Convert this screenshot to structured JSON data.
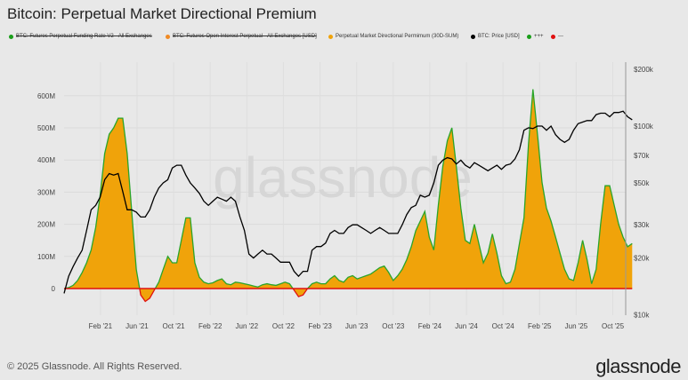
{
  "title": "Bitcoin: Perpetual Market Directional Premium",
  "legend": [
    {
      "label": "BTC: Futures Perpetual Funding Rate V2 - All Exchanges",
      "color": "#1a9e1a",
      "disabled": true
    },
    {
      "label": "BTC: Futures Open Interest Perpetual - All Exchanges [USD]",
      "color": "#f08a24",
      "disabled": true
    },
    {
      "label": "Perpetual Market Directional Permimum (30D-SUM)",
      "color": "#f0a30a",
      "disabled": false
    },
    {
      "label": "BTC: Price [USD]",
      "color": "#000000",
      "disabled": false
    },
    {
      "label": "+++",
      "color": "#1a9e1a",
      "disabled": false
    },
    {
      "label": "---",
      "color": "#e01010",
      "disabled": false
    }
  ],
  "watermark": "glassnode",
  "footer": "© 2025 Glassnode. All Rights Reserved.",
  "logo": "glassnode",
  "chart_data": {
    "type": "area",
    "title": "Bitcoin: Perpetual Market Directional Premium",
    "x_start": "2020-11-01",
    "step_days": 15,
    "x_tick_labels": [
      "Feb '21",
      "Jun '21",
      "Oct '21",
      "Feb '22",
      "Jun '22",
      "Oct '22",
      "Feb '23",
      "Jun '23",
      "Oct '23",
      "Feb '24",
      "Jun '24",
      "Oct '24",
      "Feb '25",
      "Jun '25",
      "Oct '25"
    ],
    "x_tick_month_offsets": [
      3,
      7,
      11,
      15,
      19,
      23,
      27,
      31,
      35,
      39,
      43,
      47,
      51,
      55,
      59
    ],
    "left_axis": {
      "ticks": [
        0,
        100,
        200,
        300,
        400,
        500,
        600
      ],
      "tick_labels": [
        "0",
        "100M",
        "200M",
        "300M",
        "400M",
        "500M",
        "600M"
      ],
      "ylim": [
        -120,
        700
      ],
      "unit": "M USD"
    },
    "right_axis": {
      "scale": "log",
      "ticks": [
        10,
        20,
        30,
        50,
        70,
        100,
        200
      ],
      "tick_labels": [
        "$10k",
        "$20k",
        "$30k",
        "$50k",
        "$70k",
        "$100k",
        "$200k"
      ],
      "ylim": [
        10,
        200
      ]
    },
    "series": [
      {
        "name": "Perpetual Market Directional Permimum (30D-SUM)",
        "axis": "left",
        "unit": "M USD",
        "colors": {
          "fill": "#f0a30a",
          "positive": "#2aa52a",
          "negative": "#e01010"
        },
        "values": [
          0,
          3,
          10,
          25,
          50,
          80,
          120,
          190,
          290,
          420,
          480,
          500,
          530,
          530,
          420,
          240,
          60,
          -20,
          -40,
          -30,
          -5,
          20,
          60,
          100,
          80,
          80,
          150,
          220,
          220,
          80,
          35,
          20,
          15,
          18,
          25,
          30,
          15,
          12,
          20,
          18,
          15,
          12,
          8,
          5,
          12,
          15,
          12,
          10,
          15,
          20,
          15,
          -5,
          -25,
          -20,
          0,
          15,
          20,
          15,
          15,
          30,
          40,
          25,
          20,
          35,
          40,
          30,
          35,
          40,
          45,
          55,
          65,
          70,
          50,
          25,
          40,
          60,
          90,
          130,
          180,
          210,
          240,
          160,
          120,
          260,
          380,
          460,
          500,
          380,
          250,
          150,
          140,
          200,
          140,
          80,
          110,
          170,
          110,
          40,
          15,
          20,
          60,
          140,
          220,
          450,
          620,
          480,
          330,
          250,
          210,
          160,
          110,
          60,
          30,
          25,
          80,
          150,
          90,
          15,
          60,
          200,
          320,
          320,
          260,
          200,
          160,
          130,
          140
        ]
      },
      {
        "name": "BTC: Price [USD]",
        "axis": "right",
        "unit": "k USD",
        "color": "#000000",
        "values": [
          13,
          16,
          18,
          20,
          22,
          28,
          36,
          38,
          42,
          52,
          56,
          55,
          56,
          45,
          36,
          36,
          35,
          33,
          33,
          36,
          42,
          47,
          50,
          52,
          60,
          62,
          62,
          55,
          50,
          47,
          44,
          40,
          38,
          40,
          42,
          41,
          40,
          42,
          40,
          33,
          28,
          21,
          20,
          21,
          22,
          21,
          21,
          20,
          19,
          19,
          19,
          17,
          16,
          17,
          17,
          22,
          23,
          23,
          24,
          27,
          28,
          27,
          27,
          29,
          30,
          30,
          29,
          28,
          27,
          28,
          29,
          28,
          27,
          27,
          27,
          30,
          34,
          37,
          38,
          43,
          42,
          43,
          50,
          62,
          66,
          68,
          67,
          63,
          66,
          62,
          60,
          64,
          62,
          60,
          58,
          60,
          62,
          59,
          62,
          63,
          67,
          75,
          95,
          98,
          97,
          100,
          100,
          95,
          100,
          90,
          85,
          82,
          85,
          95,
          103,
          105,
          107,
          107,
          115,
          117,
          117,
          112,
          118,
          118,
          120,
          112,
          108
        ]
      }
    ]
  }
}
